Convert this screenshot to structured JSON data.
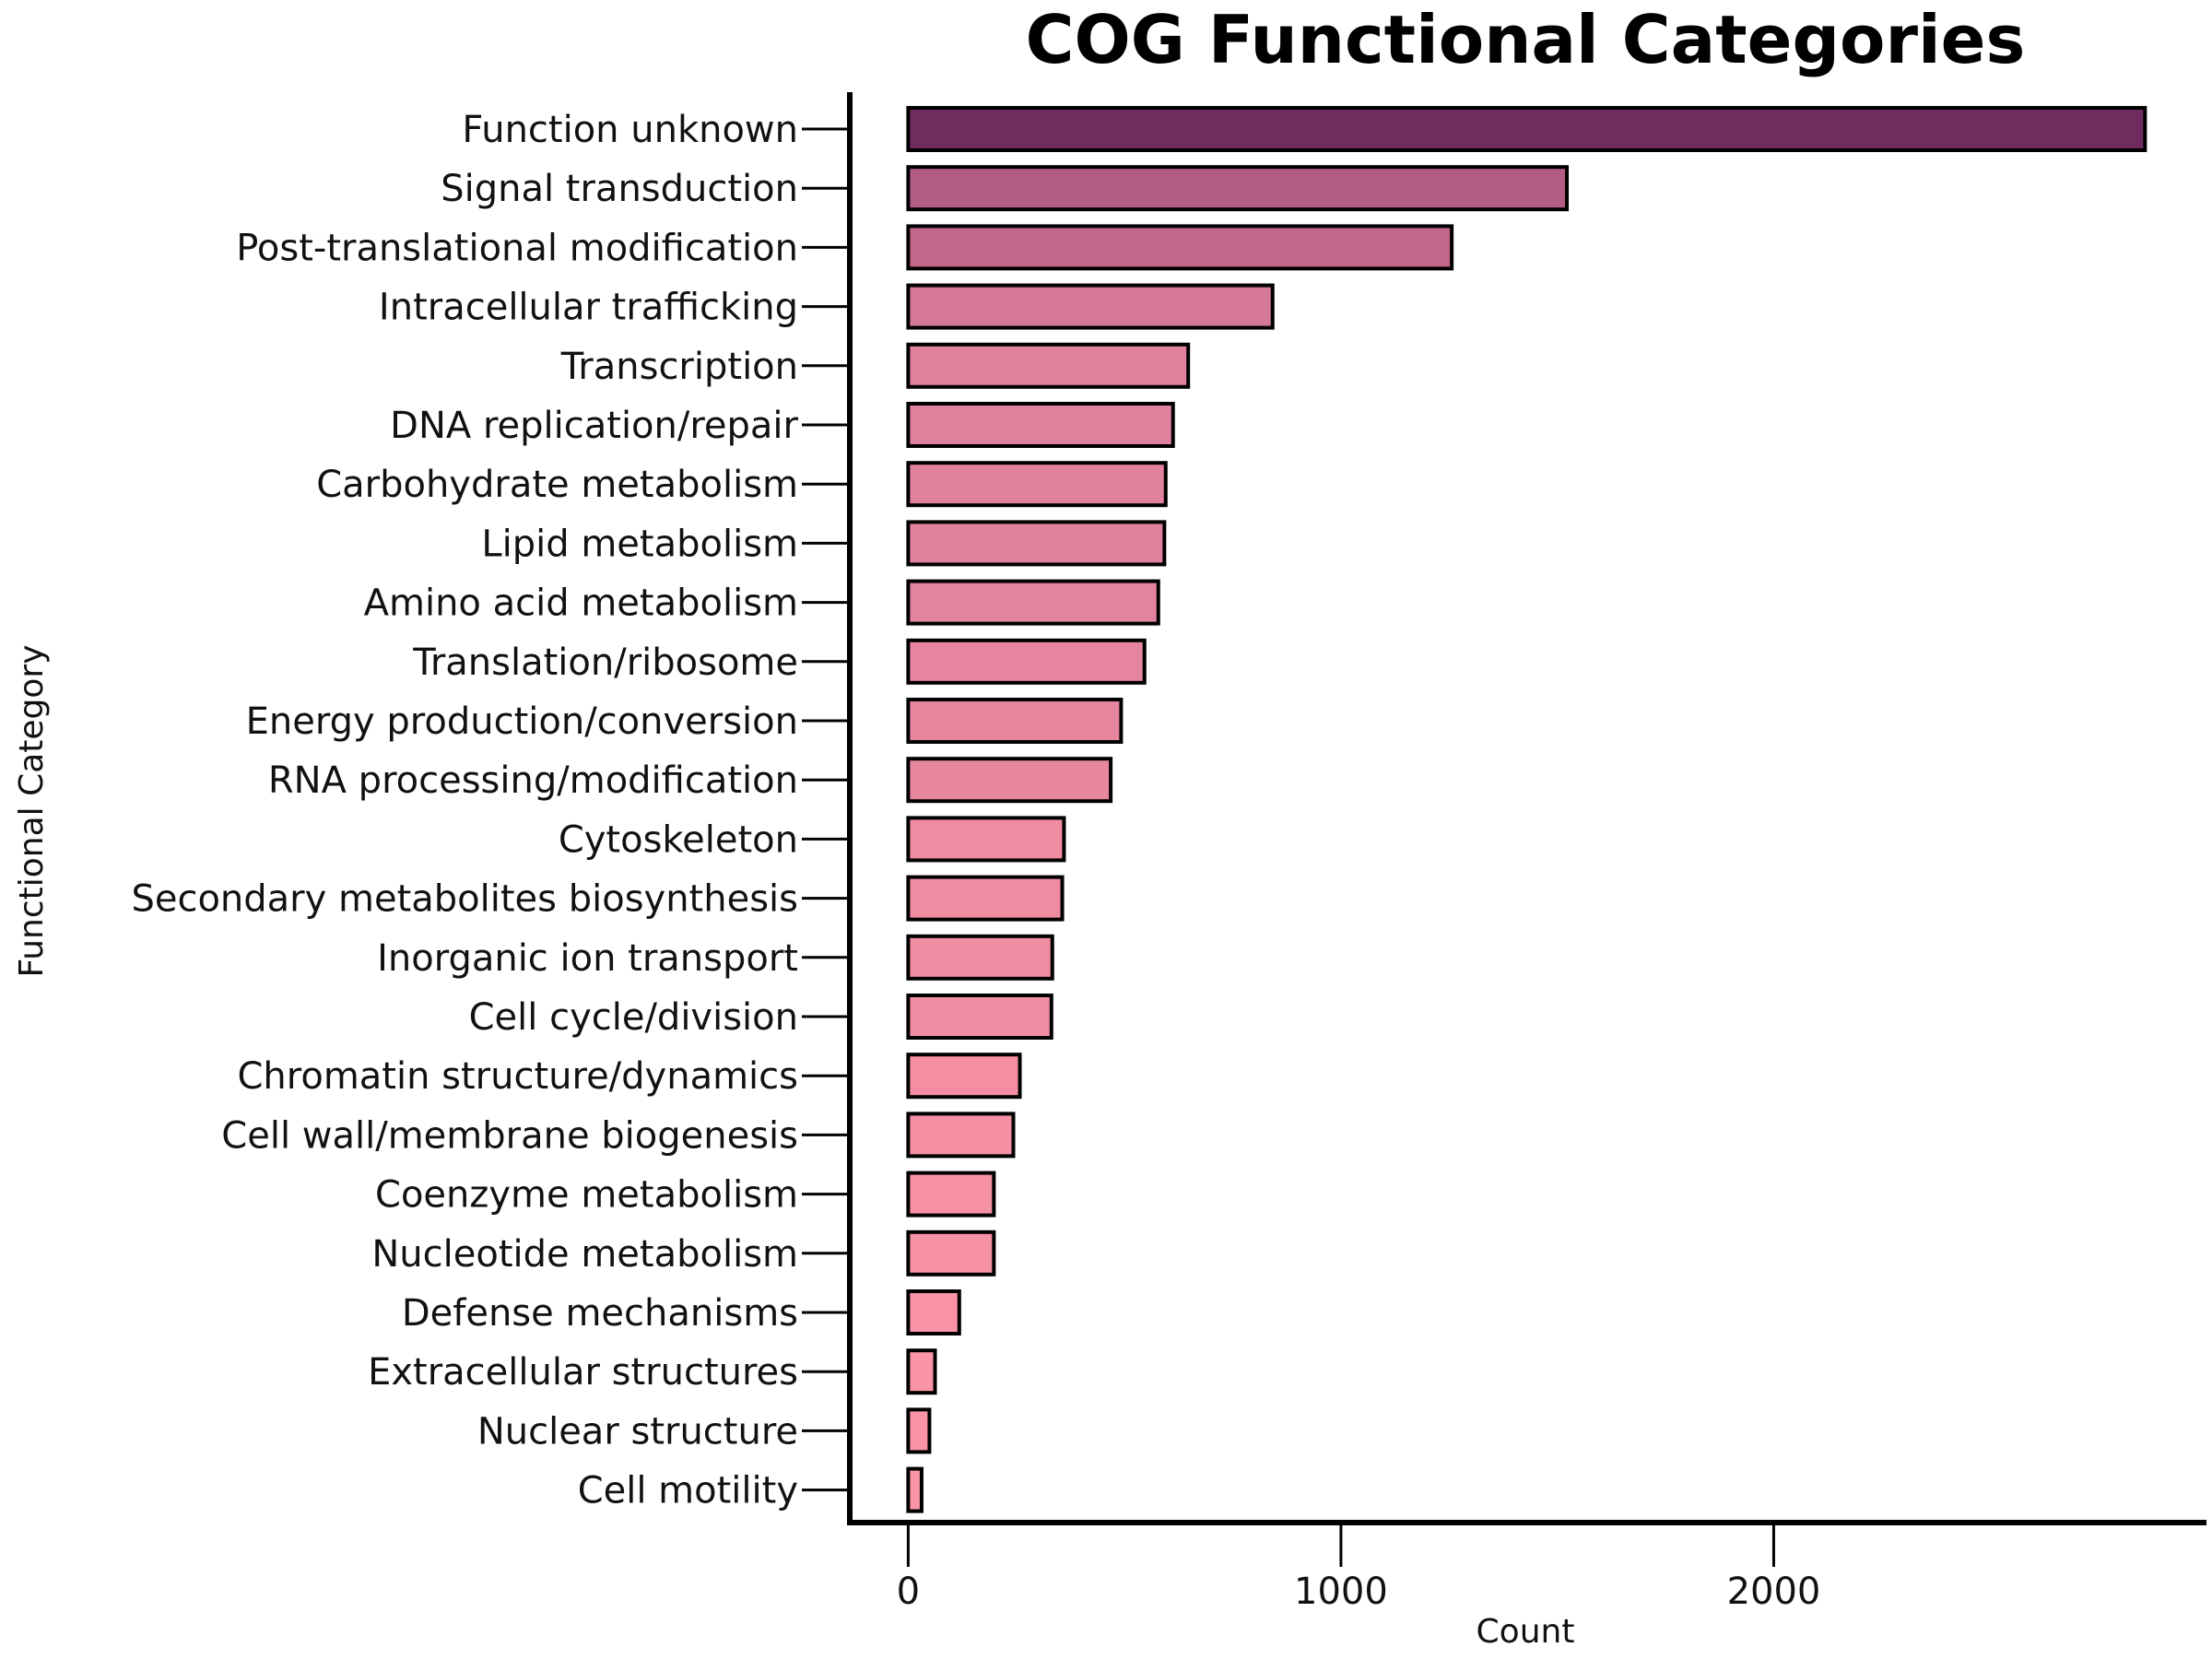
{
  "chart_data": {
    "type": "bar",
    "orientation": "horizontal",
    "title": "COG Functional Categories",
    "xlabel": "Count",
    "ylabel": "Functional Category",
    "xlim": [
      -135,
      3000
    ],
    "xticks": [
      0,
      1000,
      2000
    ],
    "grid": false,
    "legend": "none",
    "categories": [
      "Function unknown",
      "Signal transduction",
      "Post-translational modification",
      "Intracellular trafficking",
      "Transcription",
      "DNA replication/repair",
      "Carbohydrate metabolism",
      "Lipid metabolism",
      "Amino acid metabolism",
      "Translation/ribosome",
      "Energy production/conversion",
      "RNA processing/modification",
      "Cytoskeleton",
      "Secondary metabolites biosynthesis",
      "Inorganic ion transport",
      "Cell cycle/division",
      "Chromatin structure/dynamics",
      "Cell wall/membrane biogenesis",
      "Coenzyme metabolism",
      "Nucleotide metabolism",
      "Defense mechanisms",
      "Extracellular structures",
      "Nuclear structure",
      "Cell motility"
    ],
    "values": [
      2858,
      1522,
      1256,
      842,
      647,
      612,
      595,
      592,
      578,
      546,
      492,
      468,
      360,
      356,
      333,
      331,
      258,
      243,
      198,
      198,
      118,
      62,
      49,
      31
    ],
    "colors": [
      "#702c5e",
      "#b25c86",
      "#c3668c",
      "#d57896",
      "#df809c",
      "#e0819d",
      "#e2839d",
      "#e2839d",
      "#e3849e",
      "#e5859f",
      "#e7879f",
      "#e8889f",
      "#ef8ca2",
      "#ef8ca2",
      "#f08da2",
      "#f08da2",
      "#f48fa3",
      "#f58fa3",
      "#f792a5",
      "#f792a5",
      "#f994a6",
      "#fa95a7",
      "#fa95a7",
      "#fb96a7"
    ]
  }
}
